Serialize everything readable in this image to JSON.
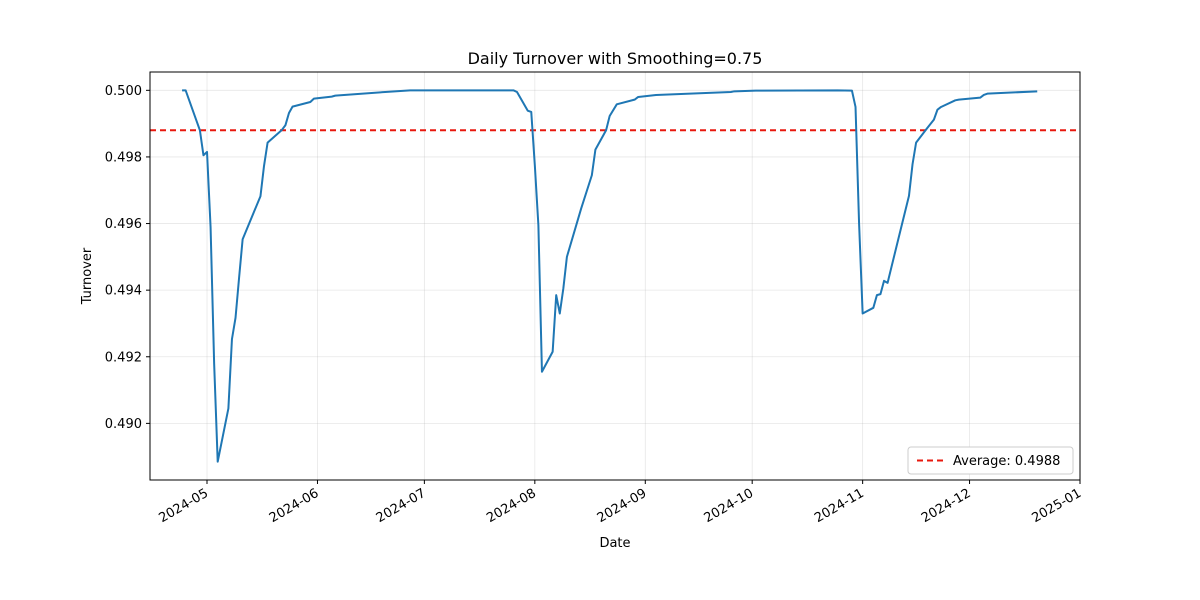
{
  "chart_data": {
    "type": "line",
    "title": "Daily Turnover with Smoothing=0.75",
    "xlabel": "Date",
    "ylabel": "Turnover",
    "ylim": [
      0.4883,
      0.50055
    ],
    "y_ticks": [
      0.49,
      0.492,
      0.494,
      0.496,
      0.498,
      0.5
    ],
    "y_tick_labels": [
      "0.490",
      "0.492",
      "0.494",
      "0.496",
      "0.498",
      "0.500"
    ],
    "x_ticks": [
      "2024-05-01",
      "2024-06-01",
      "2024-07-01",
      "2024-08-01",
      "2024-09-01",
      "2024-10-01",
      "2024-11-01",
      "2024-12-01",
      "2025-01-01"
    ],
    "x_tick_labels": [
      "2024-05",
      "2024-06",
      "2024-07",
      "2024-08",
      "2024-09",
      "2024-10",
      "2024-11",
      "2024-12",
      "2025-01"
    ],
    "xlim": [
      "2024-04-15",
      "2025-01-01"
    ],
    "grid": true,
    "legend_position": "lower-right",
    "average": {
      "label": "Average: 0.4988",
      "value": 0.4988,
      "color": "#e8180e"
    },
    "series": [
      {
        "name": "Turnover",
        "color": "#1f77b4",
        "x": [
          "2024-04-24",
          "2024-04-25",
          "2024-04-27",
          "2024-04-29",
          "2024-04-30",
          "2024-05-01",
          "2024-05-02",
          "2024-05-03",
          "2024-05-04",
          "2024-05-07",
          "2024-05-08",
          "2024-05-09",
          "2024-05-10",
          "2024-05-11",
          "2024-05-16",
          "2024-05-17",
          "2024-05-18",
          "2024-05-22",
          "2024-05-23",
          "2024-05-24",
          "2024-05-25",
          "2024-05-30",
          "2024-05-31",
          "2024-06-05",
          "2024-06-06",
          "2024-06-20",
          "2024-06-27",
          "2024-07-26",
          "2024-07-27",
          "2024-07-30",
          "2024-07-31",
          "2024-08-01",
          "2024-08-02",
          "2024-08-03",
          "2024-08-06",
          "2024-08-07",
          "2024-08-08",
          "2024-08-09",
          "2024-08-10",
          "2024-08-14",
          "2024-08-17",
          "2024-08-18",
          "2024-08-21",
          "2024-08-22",
          "2024-08-24",
          "2024-08-29",
          "2024-08-30",
          "2024-09-04",
          "2024-09-25",
          "2024-09-26",
          "2024-10-02",
          "2024-10-25",
          "2024-10-29",
          "2024-10-30",
          "2024-10-31",
          "2024-11-01",
          "2024-11-04",
          "2024-11-05",
          "2024-11-06",
          "2024-11-07",
          "2024-11-08",
          "2024-11-11",
          "2024-11-14",
          "2024-11-15",
          "2024-11-16",
          "2024-11-19",
          "2024-11-21",
          "2024-11-22",
          "2024-11-23",
          "2024-11-27",
          "2024-11-28",
          "2024-12-04",
          "2024-12-05",
          "2024-12-06",
          "2024-12-20"
        ],
        "values": [
          0.5,
          0.5,
          0.4994,
          0.4988,
          0.49805,
          0.49815,
          0.4959,
          0.4918,
          0.48885,
          0.49045,
          0.49253,
          0.49317,
          0.49437,
          0.49553,
          0.49682,
          0.49773,
          0.49843,
          0.49881,
          0.49895,
          0.49932,
          0.49951,
          0.49965,
          0.49975,
          0.49981,
          0.49984,
          0.49995,
          0.5,
          0.5,
          0.49995,
          0.49939,
          0.49935,
          0.49775,
          0.49595,
          0.49155,
          0.49215,
          0.49385,
          0.4933,
          0.49405,
          0.495,
          0.49645,
          0.49745,
          0.49822,
          0.4988,
          0.49923,
          0.49958,
          0.49972,
          0.4998,
          0.49986,
          0.49995,
          0.49997,
          0.49999,
          0.5,
          0.49999,
          0.4995,
          0.496,
          0.4933,
          0.49347,
          0.49385,
          0.49388,
          0.49428,
          0.49422,
          0.49553,
          0.49683,
          0.49778,
          0.49843,
          0.49885,
          0.49912,
          0.49942,
          0.4995,
          0.4997,
          0.49972,
          0.49978,
          0.49986,
          0.4999,
          0.49997
        ]
      }
    ]
  }
}
